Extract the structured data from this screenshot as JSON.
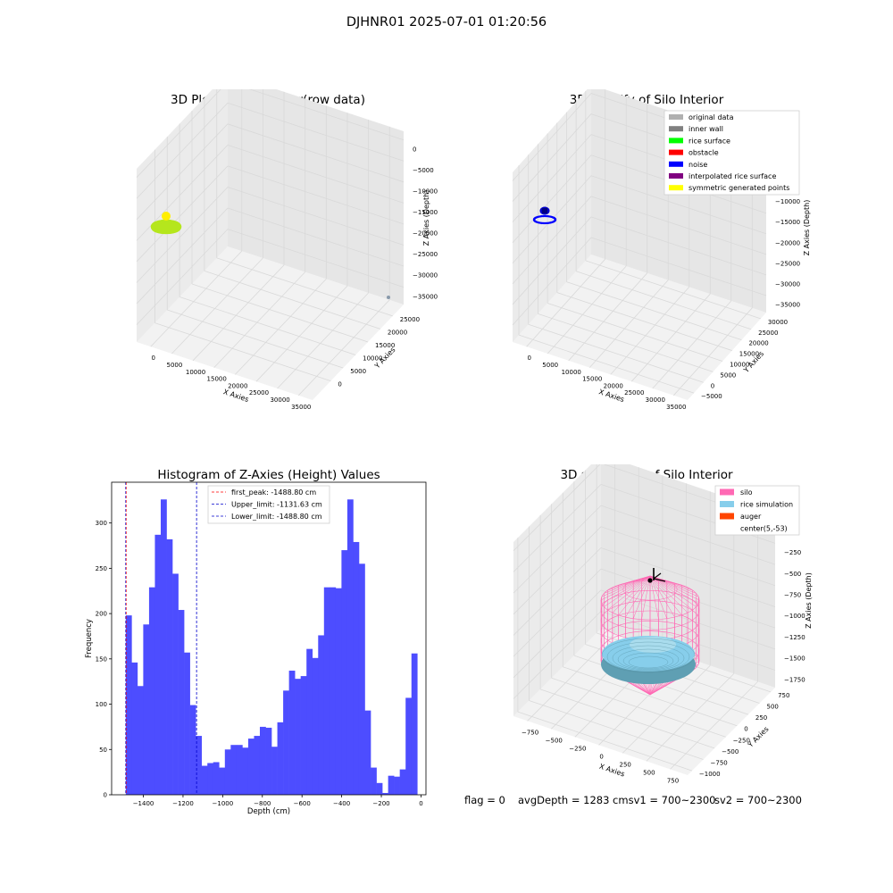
{
  "figure": {
    "suptitle": "DJHNR01 2025-07-01 01:20:56",
    "footer": {
      "flag": "flag = 0",
      "avgdepth_sv1": "avgDepth = 1283 cmsv1 = 700~2300",
      "sv2": "sv2 = 700~2300"
    }
  },
  "colors": {
    "grid": "#d9d9d9",
    "pane": "#f2f2f2",
    "hist_bar": "#4d4dff",
    "first_peak_line": "#ff0000",
    "limit_lines": "#0000cc",
    "raw_points": "#b5e61d",
    "raw_points_dark": "#ffee00",
    "silo": "#ff69b4",
    "rice_simulation": "#87ceeb",
    "auger": "#ff4500"
  },
  "chart_data": [
    {
      "type": "scatter",
      "title": "3D Plot of Silo Interior(row data)",
      "xlabel": "X Axies",
      "ylabel": "Y Axies",
      "zlabel": "Z Axies (Depth)",
      "x_ticks": [
        "0",
        "5000",
        "10000",
        "15000",
        "20000",
        "25000",
        "30000",
        "35000"
      ],
      "y_ticks": [
        "0",
        "5000",
        "10000",
        "15000",
        "20000",
        "25000"
      ],
      "z_ticks": [
        "0",
        "−5000",
        "−10000",
        "−15000",
        "−20000",
        "−25000",
        "−30000",
        "−35000"
      ],
      "grid": true
    },
    {
      "type": "scatter",
      "title": "3D classify of Silo Interior",
      "xlabel": "X Axies",
      "ylabel": "Y Axies",
      "zlabel": "Z Axies (Depth)",
      "x_ticks": [
        "0",
        "5000",
        "10000",
        "15000",
        "20000",
        "25000",
        "30000",
        "35000"
      ],
      "y_ticks": [
        "−5000",
        "0",
        "5000",
        "10000",
        "15000",
        "20000",
        "25000",
        "30000"
      ],
      "z_ticks": [
        "0",
        "−5000",
        "−10000",
        "−15000",
        "−20000",
        "−25000",
        "−30000",
        "−35000"
      ],
      "legend_position": "top-right",
      "legend": [
        {
          "label": "original data",
          "color": "#b0b0b0"
        },
        {
          "label": "inner wall",
          "color": "#808080"
        },
        {
          "label": "rice surface",
          "color": "#00ff00"
        },
        {
          "label": "obstacle",
          "color": "#ff0000"
        },
        {
          "label": "noise",
          "color": "#0000ff"
        },
        {
          "label": "interpolated rice surface",
          "color": "#800080"
        },
        {
          "label": "symmetric generated points",
          "color": "#ffff00"
        }
      ],
      "grid": true
    },
    {
      "type": "bar",
      "title": "Histogram of Z-Axies (Height) Values",
      "xlabel": "Depth (cm)",
      "ylabel": "Frequency",
      "xlim": [
        -1560,
        25
      ],
      "ylim": [
        0,
        345
      ],
      "x_ticks": [
        -1400,
        -1200,
        -1000,
        -800,
        -600,
        -400,
        -200,
        0
      ],
      "x_tick_labels": [
        "−1400",
        "−1200",
        "−1000",
        "−800",
        "−600",
        "−400",
        "−200",
        "0"
      ],
      "y_ticks": [
        0,
        50,
        100,
        150,
        200,
        250,
        300
      ],
      "bin_start": -1488.8,
      "bin_width": 29.4,
      "values": [
        198,
        146,
        120,
        188,
        229,
        287,
        326,
        282,
        244,
        204,
        157,
        99,
        65,
        32,
        35,
        36,
        30,
        50,
        55,
        55,
        52,
        62,
        65,
        75,
        74,
        53,
        80,
        115,
        137,
        128,
        131,
        161,
        151,
        176,
        229,
        229,
        228,
        270,
        326,
        279,
        255,
        93,
        30,
        13,
        2,
        21,
        20,
        28,
        107,
        156
      ],
      "vlines": [
        {
          "label": "first_peak: -1488.80 cm",
          "x": -1488.8,
          "color": "#ff0000"
        },
        {
          "label": "Upper_limit: -1131.63 cm",
          "x": -1131.63,
          "color": "#0000cc"
        },
        {
          "label": "Lower_limit: -1488.80 cm",
          "x": -1488.8,
          "color": "#0000cc"
        }
      ],
      "legend_position": "top-center",
      "grid": false
    },
    {
      "type": "scatter",
      "title": "3D simulation of Silo Interior",
      "xlabel": "X Axies",
      "ylabel": "Y Axies",
      "zlabel": "Z Axies (Depth)",
      "x_ticks": [
        "−750",
        "−500",
        "−250",
        "0",
        "250",
        "500",
        "750"
      ],
      "y_ticks": [
        "−1000",
        "−750",
        "−500",
        "−250",
        "0",
        "250",
        "500",
        "750"
      ],
      "z_ticks": [
        "0",
        "−250",
        "−500",
        "−750",
        "−1000",
        "−1250",
        "−1500",
        "−1750"
      ],
      "legend_position": "top-right",
      "legend": [
        {
          "label": "silo",
          "color": "#ff69b4"
        },
        {
          "label": "rice simulation",
          "color": "#87ceeb"
        },
        {
          "label": "auger",
          "color": "#ff4500"
        },
        {
          "label": "center(5,-53)",
          "color": "none"
        }
      ],
      "grid": true
    }
  ]
}
